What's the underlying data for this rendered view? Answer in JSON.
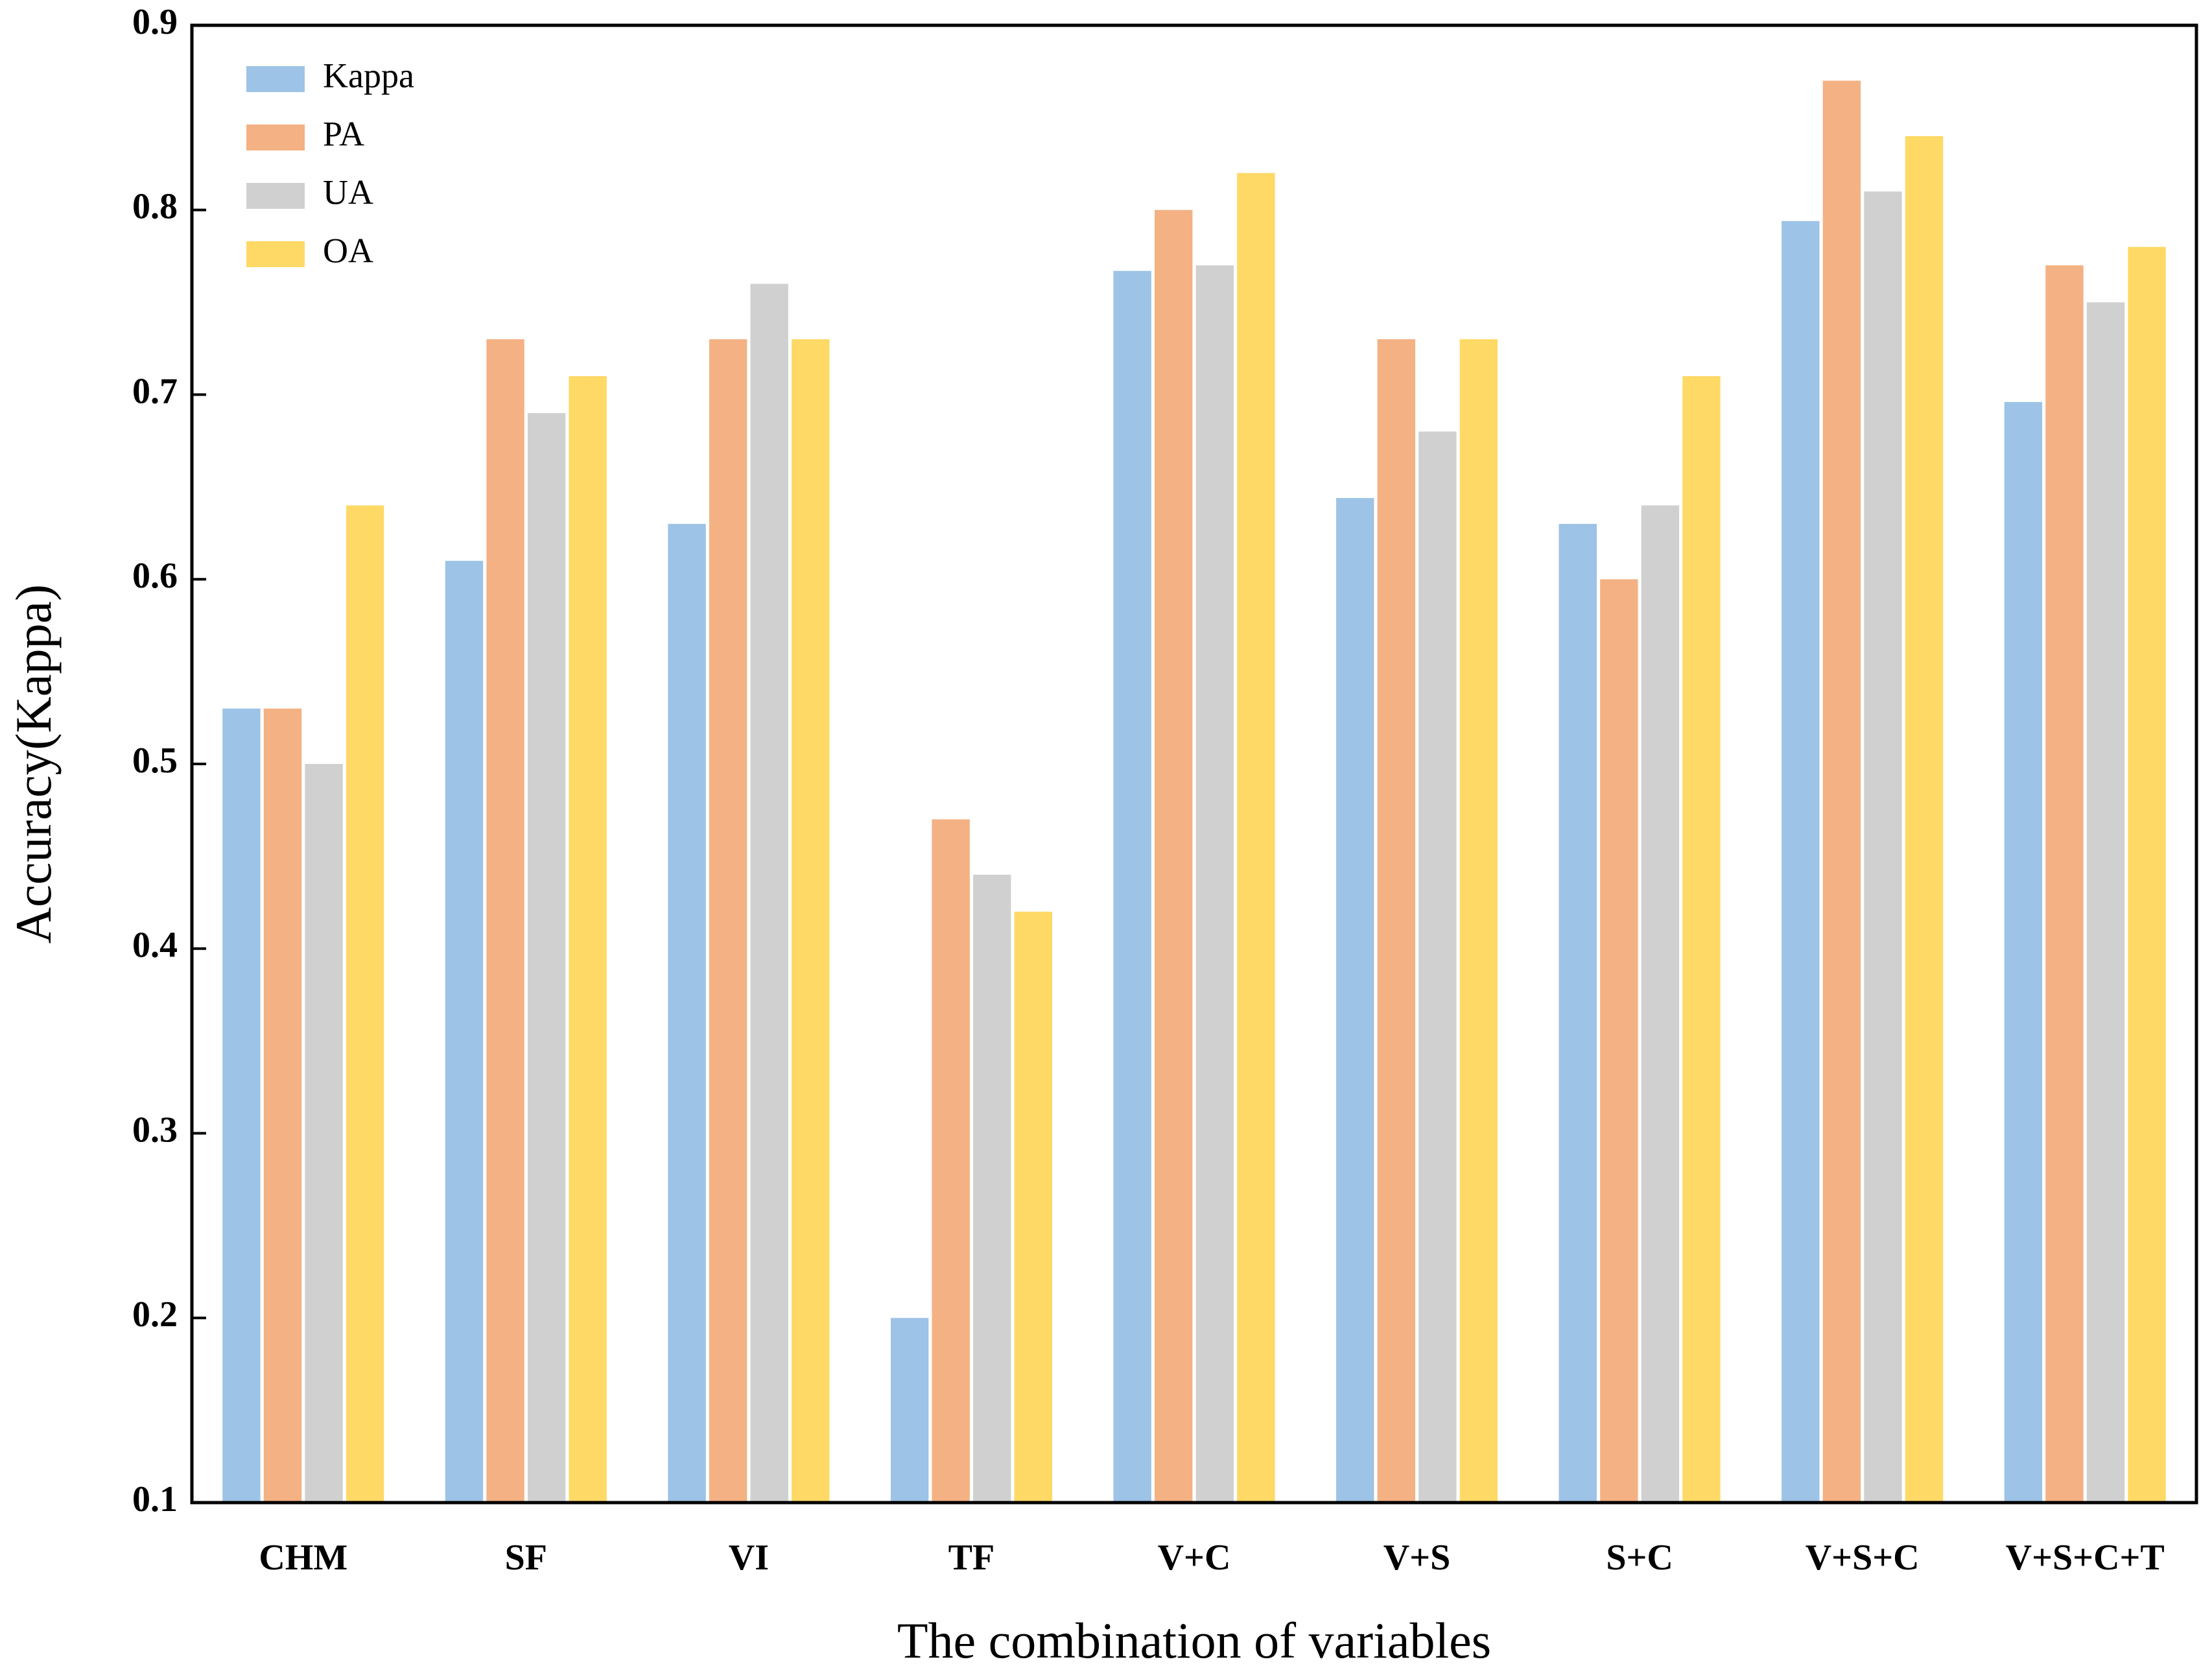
{
  "chart_data": {
    "type": "bar",
    "x_label": "The combination of variables",
    "y_label": "Accuracy(Kappa)",
    "categories": [
      "CHM",
      "SF",
      "VI",
      "TF",
      "V+C",
      "V+S",
      "S+C",
      "V+S+C",
      "V+S+C+T"
    ],
    "series": [
      {
        "name": "Kappa",
        "color": "#9dc3e6",
        "values": [
          0.53,
          0.61,
          0.63,
          0.2,
          0.767,
          0.644,
          0.63,
          0.794,
          0.696
        ]
      },
      {
        "name": "PA",
        "color": "#f4b183",
        "values": [
          0.53,
          0.73,
          0.73,
          0.47,
          0.8,
          0.73,
          0.6,
          0.87,
          0.77
        ]
      },
      {
        "name": "UA",
        "color": "#d0d0d0",
        "values": [
          0.5,
          0.69,
          0.76,
          0.44,
          0.77,
          0.68,
          0.64,
          0.81,
          0.75
        ]
      },
      {
        "name": "OA",
        "color": "#ffd966",
        "values": [
          0.64,
          0.71,
          0.73,
          0.42,
          0.82,
          0.73,
          0.71,
          0.84,
          0.78
        ]
      }
    ],
    "ylim": [
      0.1,
      0.9
    ],
    "yticks": [
      0.1,
      0.2,
      0.3,
      0.4,
      0.5,
      0.6,
      0.7,
      0.8,
      0.9
    ],
    "legend": "upper-left",
    "grid": false
  }
}
